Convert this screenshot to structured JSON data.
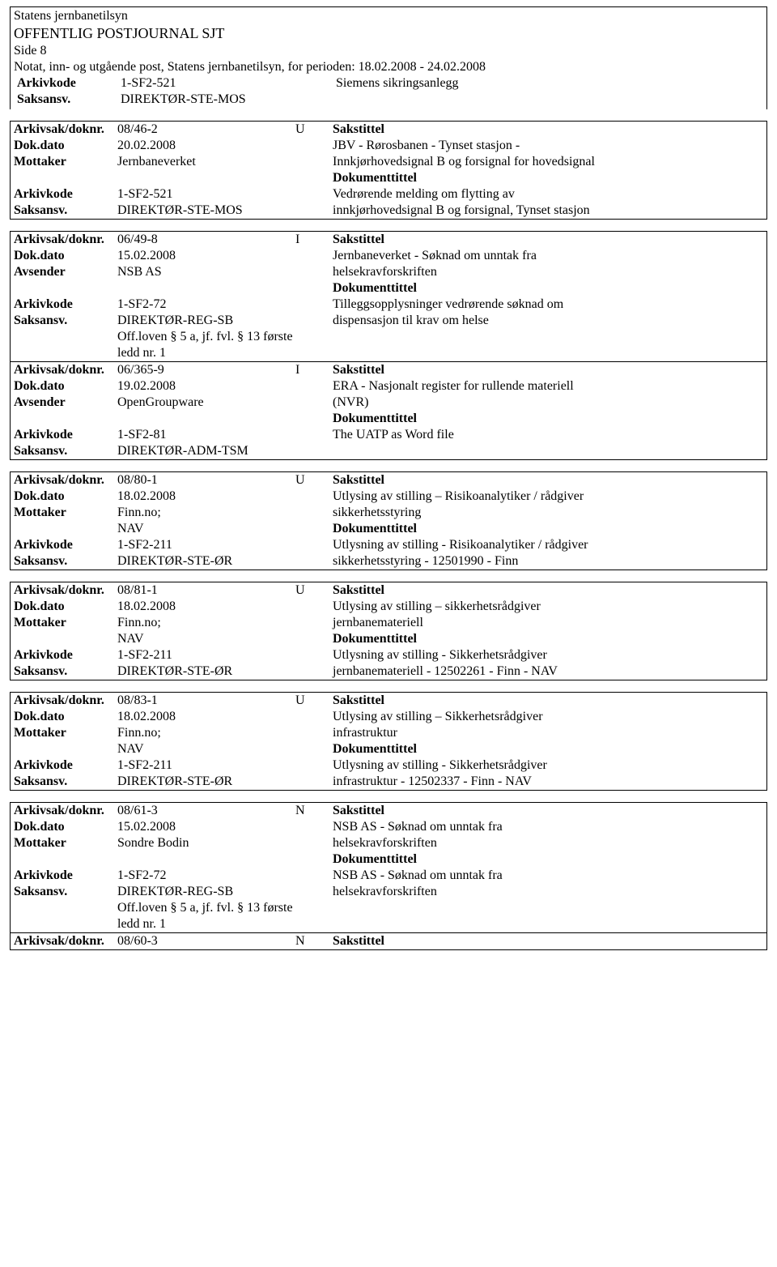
{
  "header": {
    "org": "Statens jernbanetilsyn",
    "title": "OFFENTLIG POSTJOURNAL SJT",
    "side": "Side 8",
    "subtitle": "Notat, inn- og utgående post, Statens jernbanetilsyn, for perioden: 18.02.2008 - 24.02.2008",
    "arkivkode_label": "Arkivkode",
    "arkivkode_value": "1-SF2-521",
    "arkivkode_right": "Siemens sikringsanlegg",
    "saksansv_label": "Saksansv.",
    "saksansv_value": "DIREKTØR-STE-MOS"
  },
  "labels": {
    "arkivsak": "Arkivsak/doknr.",
    "dokdato": "Dok.dato",
    "mottaker": "Mottaker",
    "avsender": "Avsender",
    "arkivkode": "Arkivkode",
    "saksansv": "Saksansv.",
    "sakstittel": "Sakstittel",
    "dokumenttittel": "Dokumenttittel"
  },
  "records": [
    {
      "arkivsak": "08/46-2",
      "ui": "U",
      "dokdato": "20.02.2008",
      "party_label": "Mottaker",
      "party_value": "Jernbaneverket",
      "party_value2": "",
      "arkivkode": "1-SF2-521",
      "saksansv": "DIREKTØR-STE-MOS",
      "sakstittel_1": "JBV - Rørosbanen - Tynset stasjon -",
      "sakstittel_2": "Innkjørhovedsignal B og forsignal for hovedsignal",
      "doktittel_1": "Vedrørende melding om flytting av",
      "doktittel_2": "innkjørhovedsignal B og forsignal, Tynset stasjon",
      "extra": ""
    },
    {
      "arkivsak": "06/49-8",
      "ui": "I",
      "dokdato": "15.02.2008",
      "party_label": "Avsender",
      "party_value": "NSB AS",
      "party_value2": "",
      "arkivkode": "1-SF2-72",
      "saksansv": "DIREKTØR-REG-SB",
      "sakstittel_1": "Jernbaneverket - Søknad om unntak fra",
      "sakstittel_2": "helsekravforskriften",
      "doktittel_1": "Tilleggsopplysninger vedrørende søknad om",
      "doktittel_2": "dispensasjon til krav om helse",
      "extra": "Off.loven § 5 a, jf. fvl. § 13 første ledd nr. 1"
    },
    {
      "arkivsak": "06/365-9",
      "ui": "I",
      "dokdato": "19.02.2008",
      "party_label": "Avsender",
      "party_value": "OpenGroupware",
      "party_value2": "",
      "arkivkode": "1-SF2-81",
      "saksansv": "DIREKTØR-ADM-TSM",
      "sakstittel_1": "ERA - Nasjonalt register for rullende materiell",
      "sakstittel_2": "(NVR)",
      "doktittel_1": "The UATP as  Word file",
      "doktittel_2": "",
      "extra": ""
    },
    {
      "arkivsak": "08/80-1",
      "ui": "U",
      "dokdato": "18.02.2008",
      "party_label": "Mottaker",
      "party_value": "Finn.no;",
      "party_value2": "NAV",
      "arkivkode": "1-SF2-211",
      "saksansv": "DIREKTØR-STE-ØR",
      "sakstittel_1": "Utlysing av stilling – Risikoanalytiker / rådgiver",
      "sakstittel_2": "sikkerhetsstyring",
      "doktittel_1": "Utlysning av stilling - Risikoanalytiker / rådgiver",
      "doktittel_2": "sikkerhetsstyring - 12501990 - Finn",
      "extra": ""
    },
    {
      "arkivsak": "08/81-1",
      "ui": "U",
      "dokdato": "18.02.2008",
      "party_label": "Mottaker",
      "party_value": "Finn.no;",
      "party_value2": "NAV",
      "arkivkode": "1-SF2-211",
      "saksansv": "DIREKTØR-STE-ØR",
      "sakstittel_1": "Utlysing av stilling – sikkerhetsrådgiver",
      "sakstittel_2": "jernbanemateriell",
      "doktittel_1": "Utlysning av stilling - Sikkerhetsrådgiver",
      "doktittel_2": "jernbanemateriell - 12502261 - Finn - NAV",
      "extra": ""
    },
    {
      "arkivsak": "08/83-1",
      "ui": "U",
      "dokdato": "18.02.2008",
      "party_label": "Mottaker",
      "party_value": "Finn.no;",
      "party_value2": "NAV",
      "arkivkode": "1-SF2-211",
      "saksansv": "DIREKTØR-STE-ØR",
      "sakstittel_1": "Utlysing av stilling – Sikkerhetsrådgiver",
      "sakstittel_2": "infrastruktur",
      "doktittel_1": "Utlysning av stilling - Sikkerhetsrådgiver",
      "doktittel_2": "infrastruktur - 12502337 - Finn - NAV",
      "extra": ""
    },
    {
      "arkivsak": "08/61-3",
      "ui": "N",
      "dokdato": "15.02.2008",
      "party_label": "Mottaker",
      "party_value": "Sondre Bodin",
      "party_value2": "",
      "arkivkode": "1-SF2-72",
      "saksansv": "DIREKTØR-REG-SB",
      "sakstittel_1": "NSB AS - Søknad om unntak fra",
      "sakstittel_2": "helsekravforskriften",
      "doktittel_1": "NSB AS - Søknad om unntak fra",
      "doktittel_2": "helsekravforskriften",
      "extra": "Off.loven § 5 a, jf. fvl. § 13 første ledd nr. 1"
    }
  ],
  "trailing": {
    "arkivsak": "08/60-3",
    "ui": "N"
  }
}
